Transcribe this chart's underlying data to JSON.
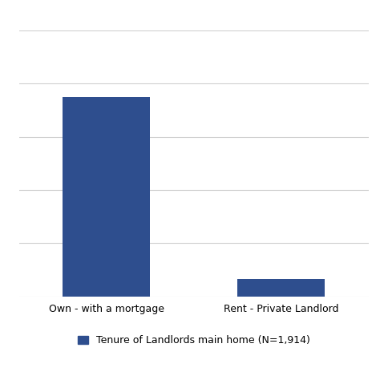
{
  "categories": [
    "Own - with a mortgage",
    "Rent - Private Landlord"
  ],
  "values": [
    1500,
    130
  ],
  "bar_color": "#2e4e8e",
  "bar_width": 0.5,
  "ylim": [
    0,
    2000
  ],
  "yticks": [
    0,
    400,
    800,
    1200,
    1600,
    2000
  ],
  "grid": true,
  "grid_color": "#d0d0d0",
  "grid_linewidth": 0.8,
  "background_color": "#ffffff",
  "legend_label": "Tenure of Landlords main home (N=1,914)",
  "legend_fontsize": 9,
  "tick_fontsize": 9,
  "fig_width": 4.74,
  "fig_height": 4.74,
  "x_positions": [
    0.5,
    1.5
  ],
  "xlim": [
    0,
    2.0
  ]
}
